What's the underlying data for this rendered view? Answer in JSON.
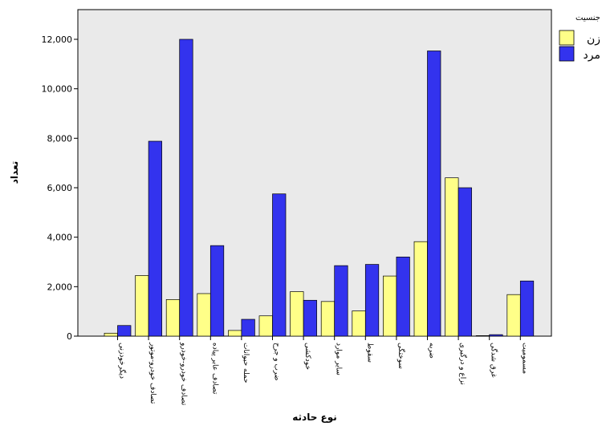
{
  "chart_data": {
    "type": "bar",
    "xlabel": "نوع حادثه",
    "ylabel": "تعداد",
    "ylim": [
      0,
      13000
    ],
    "yticks": [
      0,
      2000,
      4000,
      6000,
      8000,
      10000,
      12000
    ],
    "ytick_labels": [
      "0",
      "2,000",
      "4,000",
      "6,000",
      "8,000",
      "10,000",
      "12,000"
    ],
    "grid": false,
    "legend_title": "جنسیت",
    "legend_position": "top-right",
    "categories": [
      "دیگرخودزنی",
      "تصادف خودرو-موتور",
      "تصادف خودرو-خودرو",
      "تصادف عابر پیاده",
      "حمله حیوانات",
      "ضرب و جرح",
      "خودکشی",
      "سایر موارد",
      "سقوط",
      "سوختگی",
      "ضربه",
      "نزاع و درگیری",
      "غرق شدگی",
      "مسمومیت"
    ],
    "series": [
      {
        "name": "زن",
        "color": "#ffff88",
        "values": [
          120,
          2450,
          1480,
          1720,
          230,
          820,
          1800,
          1400,
          1020,
          2430,
          3820,
          6400,
          20,
          1680
        ]
      },
      {
        "name": "مرد",
        "color": "#3333ee",
        "values": [
          430,
          7880,
          12000,
          3660,
          680,
          5750,
          1450,
          2850,
          2900,
          3200,
          11530,
          6000,
          60,
          2230
        ]
      }
    ]
  }
}
